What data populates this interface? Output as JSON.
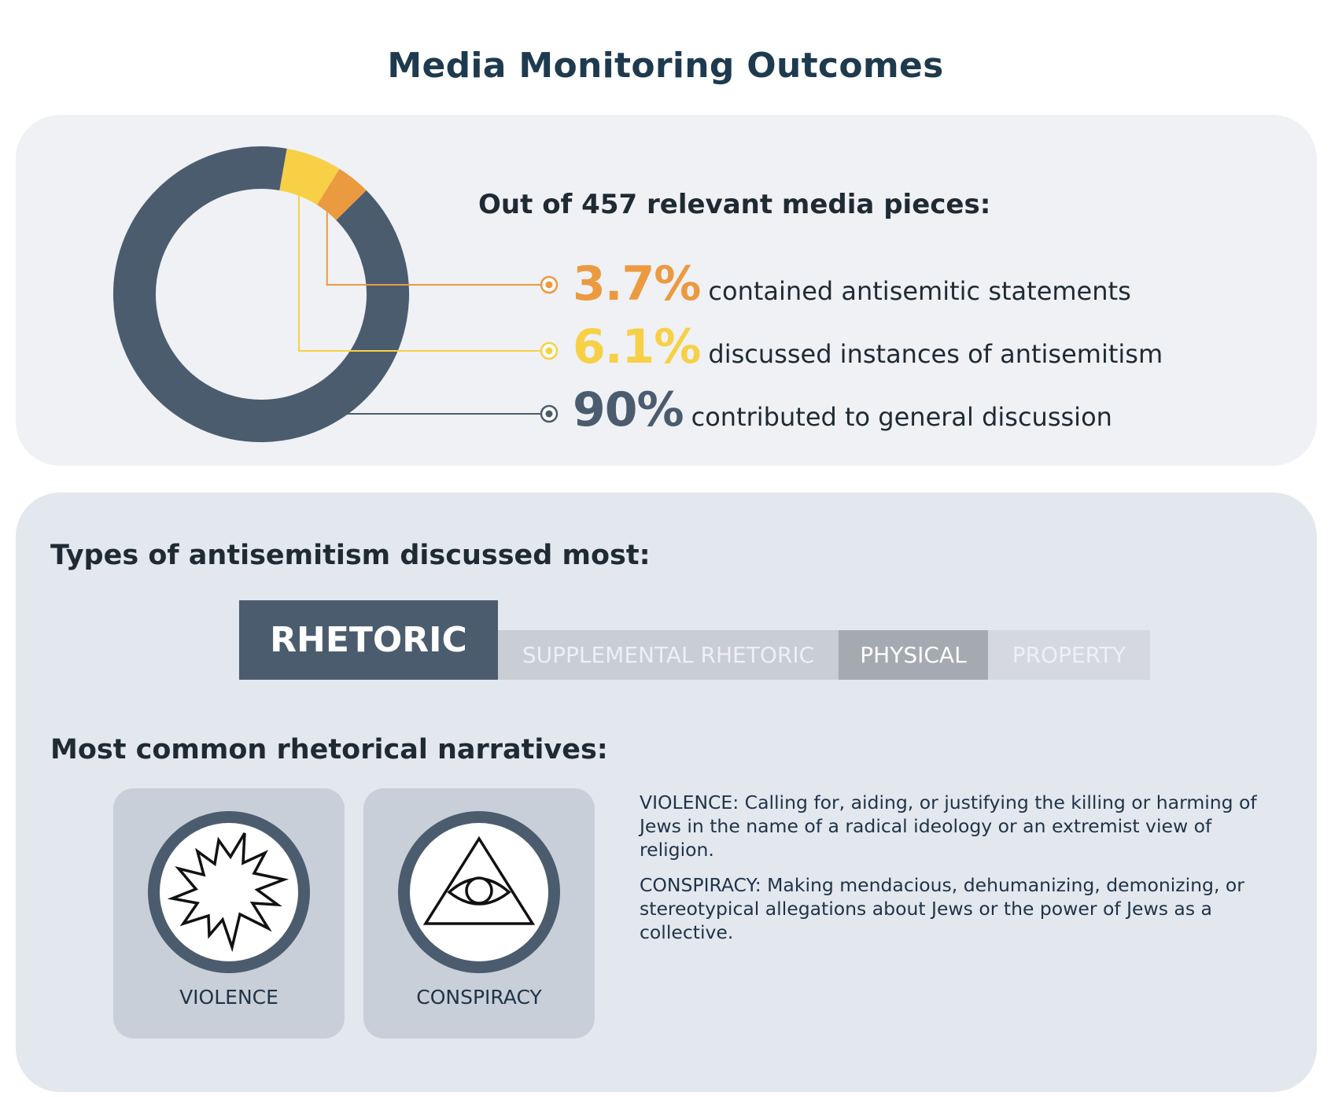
{
  "title": "Media Monitoring Outcomes",
  "summary": {
    "intro": "Out of 457 relevant media pieces:",
    "stats": [
      {
        "value": "3.7%",
        "text": "contained antisemitic statements",
        "color": "#eb9a40"
      },
      {
        "value": "6.1%",
        "text": "discussed instances of antisemitism",
        "color": "#f7d046"
      },
      {
        "value": "90%",
        "text": "contributed to general discussion",
        "color": "#4b5c6e"
      }
    ]
  },
  "chart_data": {
    "type": "pie",
    "donut": true,
    "total_pieces": 457,
    "slices": [
      {
        "label": "contained antisemitic statements",
        "value": 3.7,
        "color": "#eb9a40"
      },
      {
        "label": "discussed instances of antisemitism",
        "value": 6.1,
        "color": "#f7d046"
      },
      {
        "label": "contributed to general discussion",
        "value": 90,
        "color": "#4b5c6e"
      }
    ]
  },
  "types": {
    "heading": "Types of antisemitism discussed most:",
    "items": [
      {
        "label": "RHETORIC",
        "color": "#4b5c6e"
      },
      {
        "label": "SUPPLEMENTAL RHETORIC",
        "color": "#c9cdd4"
      },
      {
        "label": "PHYSICAL",
        "color": "#a5a9b1"
      },
      {
        "label": "PROPERTY",
        "color": "#d5d8de"
      }
    ]
  },
  "narratives": {
    "heading": "Most common rhetorical narratives:",
    "cards": [
      {
        "label": "VIOLENCE",
        "icon": "explosion-icon"
      },
      {
        "label": "CONSPIRACY",
        "icon": "eye-of-providence-icon"
      }
    ],
    "definitions": [
      "VIOLENCE: Calling for, aiding, or justifying the killing or harming of Jews in the name of a radical ideology or an extremist view of religion.",
      "CONSPIRACY: Making mendacious, dehumanizing, demonizing, or stereotypical allegations about Jews or the power of Jews as a collective."
    ]
  }
}
